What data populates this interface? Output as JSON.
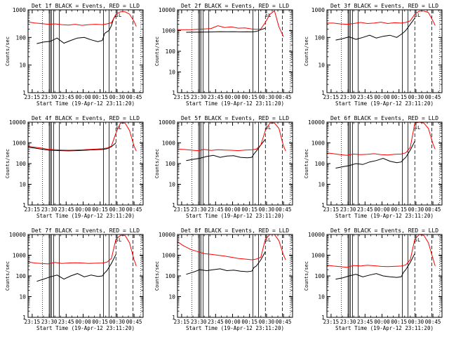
{
  "colors": {
    "events": "#000000",
    "lld": "#ff0000",
    "background": "#ffffff",
    "axes": "#000000"
  },
  "chart_data": [
    {
      "type": "line",
      "title": "Det 1f BLACK = Events, RED = LLD",
      "xlabel": "Start Time (19-Apr-12 23:11:20)",
      "ylabel": "Counts/sec",
      "x_ticks": [
        "23:15",
        "23:30",
        "23:45",
        "00:00",
        "00:15",
        "00:30",
        "00:45"
      ],
      "x_range": [
        "23:11:20",
        "00:53"
      ],
      "y_scale": "log",
      "y_ticks": [
        "1",
        "10",
        "100",
        "1000"
      ],
      "ylim": [
        1,
        1000
      ],
      "grid": false,
      "series": [
        {
          "color": "#000000",
          "x": [
            "23:19",
            "23:25",
            "23:31",
            "23:37",
            "23:43",
            "23:49",
            "23:55",
            "00:01",
            "00:07",
            "00:13",
            "00:17",
            "00:19",
            "00:21",
            "00:23",
            "00:25",
            "00:27",
            "00:29"
          ],
          "y": [
            60,
            68,
            72,
            95,
            62,
            78,
            95,
            100,
            82,
            70,
            78,
            140,
            160,
            180,
            270,
            500,
            600
          ]
        },
        {
          "color": "#ff0000",
          "x": [
            "23:11",
            "23:17",
            "23:23",
            "23:29",
            "23:35",
            "23:41",
            "23:47",
            "23:53",
            "23:59",
            "00:05",
            "00:11",
            "00:17",
            "00:21",
            "00:25",
            "00:29",
            "00:33",
            "00:37",
            "00:41",
            "00:45",
            "00:47"
          ],
          "y": [
            370,
            335,
            320,
            300,
            310,
            290,
            280,
            300,
            275,
            290,
            300,
            290,
            310,
            340,
            700,
            850,
            850,
            700,
            380,
            250
          ]
        }
      ],
      "annotations": [
        "sL"
      ]
    },
    {
      "type": "line",
      "title": "Det 2f BLACK = Events, RED = LLD",
      "xlabel": "Start Time (19-Apr-12 23:11:20)",
      "ylabel": "Counts/sec",
      "x_ticks": [
        "23:15",
        "23:30",
        "23:45",
        "00:00",
        "00:15",
        "00:30",
        "00:45"
      ],
      "x_range": [
        "23:11:20",
        "00:53"
      ],
      "y_scale": "log",
      "y_ticks": [
        "1",
        "10",
        "100",
        "1000",
        "10000"
      ],
      "ylim": [
        1,
        10000
      ],
      "grid": false,
      "series": [
        {
          "color": "#000000",
          "x": [
            "23:19",
            "23:25",
            "23:31",
            "23:37",
            "23:43",
            "23:49",
            "23:55",
            "00:01",
            "00:07",
            "00:13",
            "00:17",
            "00:19",
            "00:21",
            "00:25",
            "00:29"
          ],
          "y": [
            820,
            830,
            840,
            850,
            860,
            880,
            870,
            880,
            860,
            870,
            860,
            880,
            900,
            1100,
            1300
          ]
        },
        {
          "color": "#ff0000",
          "x": [
            "23:11",
            "23:17",
            "23:23",
            "23:29",
            "23:35",
            "23:41",
            "23:47",
            "23:53",
            "23:59",
            "00:05",
            "00:11",
            "00:17",
            "00:21",
            "00:25",
            "00:29",
            "00:33",
            "00:37",
            "00:41",
            "00:45"
          ],
          "y": [
            1100,
            1100,
            1100,
            1150,
            1200,
            1250,
            1700,
            1400,
            1500,
            1300,
            1350,
            1200,
            1150,
            1200,
            2500,
            6000,
            9000,
            1500,
            500
          ]
        }
      ],
      "annotations": [
        "sL"
      ]
    },
    {
      "type": "line",
      "title": "Det 3f BLACK = Events, RED = LLD",
      "xlabel": "Start Time (19-Apr-12 23:11:20)",
      "ylabel": "Counts/sec",
      "x_ticks": [
        "23:15",
        "23:30",
        "23:45",
        "00:00",
        "00:15",
        "00:30",
        "00:45"
      ],
      "x_range": [
        "23:11:20",
        "00:53"
      ],
      "y_scale": "log",
      "y_ticks": [
        "1",
        "10",
        "100",
        "1000"
      ],
      "ylim": [
        1,
        1000
      ],
      "grid": false,
      "series": [
        {
          "color": "#000000",
          "x": [
            "23:19",
            "23:25",
            "23:31",
            "23:37",
            "23:43",
            "23:49",
            "23:55",
            "00:01",
            "00:07",
            "00:13",
            "00:17",
            "00:19",
            "00:21",
            "00:25",
            "00:29"
          ],
          "y": [
            80,
            90,
            105,
            85,
            100,
            120,
            95,
            110,
            120,
            100,
            130,
            150,
            180,
            300,
            500
          ]
        },
        {
          "color": "#ff0000",
          "x": [
            "23:11",
            "23:17",
            "23:23",
            "23:29",
            "23:35",
            "23:41",
            "23:47",
            "23:53",
            "23:59",
            "00:05",
            "00:11",
            "00:17",
            "00:21",
            "00:25",
            "00:29",
            "00:33",
            "00:37",
            "00:41",
            "00:45",
            "00:47"
          ],
          "y": [
            330,
            330,
            310,
            300,
            320,
            350,
            320,
            330,
            360,
            320,
            340,
            330,
            350,
            400,
            700,
            900,
            900,
            800,
            400,
            270
          ]
        }
      ],
      "annotations": [
        "sL"
      ]
    },
    {
      "type": "line",
      "title": "Det 4f BLACK = Events, RED = LLD",
      "xlabel": "Start Time (19-Apr-12 23:11:20)",
      "ylabel": "Counts/sec",
      "x_ticks": [
        "23:15",
        "23:30",
        "23:45",
        "00:00",
        "00:15",
        "00:30",
        "00:45"
      ],
      "x_range": [
        "23:11:20",
        "00:53"
      ],
      "y_scale": "log",
      "y_ticks": [
        "1",
        "10",
        "100",
        "1000",
        "10000"
      ],
      "ylim": [
        1,
        10000
      ],
      "grid": false,
      "series": [
        {
          "color": "#000000",
          "x": [
            "23:11",
            "23:17",
            "23:23",
            "23:29",
            "23:35",
            "23:41",
            "23:47",
            "23:53",
            "23:59",
            "00:05",
            "00:11",
            "00:17",
            "00:21",
            "00:25",
            "00:29"
          ],
          "y": [
            620,
            560,
            500,
            450,
            430,
            420,
            410,
            420,
            430,
            450,
            470,
            480,
            520,
            650,
            1000
          ]
        },
        {
          "color": "#ff0000",
          "x": [
            "23:11",
            "23:17",
            "23:23",
            "23:29",
            "23:35",
            "23:41",
            "23:47",
            "23:53",
            "23:59",
            "00:05",
            "00:11",
            "00:17",
            "00:21",
            "00:25",
            "00:29",
            "00:33",
            "00:37",
            "00:41",
            "00:45",
            "00:47"
          ],
          "y": [
            680,
            620,
            560,
            490,
            470,
            450,
            440,
            450,
            460,
            480,
            500,
            520,
            560,
            700,
            3000,
            9000,
            9000,
            4000,
            700,
            400
          ]
        }
      ],
      "annotations": [
        "sL"
      ]
    },
    {
      "type": "line",
      "title": "Det 5f BLACK = Events, RED = LLD",
      "xlabel": "Start Time (19-Apr-12 23:11:20)",
      "ylabel": "Counts/sec",
      "x_ticks": [
        "23:15",
        "23:30",
        "23:45",
        "00:00",
        "00:15",
        "00:30",
        "00:45"
      ],
      "x_range": [
        "23:11:20",
        "00:53"
      ],
      "y_scale": "log",
      "y_ticks": [
        "1",
        "10",
        "100",
        "1000",
        "10000"
      ],
      "ylim": [
        1,
        10000
      ],
      "grid": false,
      "series": [
        {
          "color": "#000000",
          "x": [
            "23:19",
            "23:25",
            "23:31",
            "23:37",
            "23:43",
            "23:49",
            "23:55",
            "00:01",
            "00:07",
            "00:13",
            "00:17",
            "00:19",
            "00:21",
            "00:25",
            "00:29"
          ],
          "y": [
            140,
            160,
            180,
            220,
            250,
            200,
            230,
            240,
            200,
            190,
            200,
            300,
            400,
            800,
            1500
          ]
        },
        {
          "color": "#ff0000",
          "x": [
            "23:11",
            "23:17",
            "23:23",
            "23:29",
            "23:35",
            "23:41",
            "23:47",
            "23:53",
            "23:59",
            "00:05",
            "00:11",
            "00:17",
            "00:21",
            "00:25",
            "00:29",
            "00:33",
            "00:37",
            "00:41",
            "00:45",
            "00:47"
          ],
          "y": [
            500,
            480,
            450,
            420,
            480,
            430,
            470,
            450,
            440,
            420,
            450,
            460,
            500,
            800,
            4000,
            9000,
            9000,
            5000,
            700,
            400
          ]
        }
      ],
      "annotations": [
        "sL"
      ]
    },
    {
      "type": "line",
      "title": "Det 6f BLACK = Events, RED = LLD",
      "xlabel": "Start Time (19-Apr-12 23:11:20)",
      "ylabel": "Counts/sec",
      "x_ticks": [
        "23:15",
        "23:30",
        "23:45",
        "00:00",
        "00:15",
        "00:30",
        "00:45"
      ],
      "x_range": [
        "23:11:20",
        "00:53"
      ],
      "y_scale": "log",
      "y_ticks": [
        "1",
        "10",
        "100",
        "1000",
        "10000"
      ],
      "ylim": [
        1,
        10000
      ],
      "grid": false,
      "series": [
        {
          "color": "#000000",
          "x": [
            "23:19",
            "23:25",
            "23:31",
            "23:37",
            "23:43",
            "23:49",
            "23:55",
            "00:01",
            "00:07",
            "00:13",
            "00:17",
            "00:19",
            "00:21",
            "00:25",
            "00:29"
          ],
          "y": [
            60,
            70,
            80,
            100,
            90,
            120,
            140,
            180,
            130,
            110,
            120,
            160,
            200,
            450,
            1200
          ]
        },
        {
          "color": "#ff0000",
          "x": [
            "23:11",
            "23:17",
            "23:23",
            "23:29",
            "23:35",
            "23:41",
            "23:47",
            "23:53",
            "23:59",
            "00:05",
            "00:11",
            "00:17",
            "00:21",
            "00:25",
            "00:29",
            "00:33",
            "00:37",
            "00:41",
            "00:45",
            "00:47"
          ],
          "y": [
            330,
            300,
            270,
            250,
            290,
            270,
            280,
            300,
            270,
            260,
            280,
            290,
            330,
            600,
            9000,
            10000,
            9000,
            5000,
            900,
            500
          ]
        }
      ],
      "annotations": [
        "sL"
      ]
    },
    {
      "type": "line",
      "title": "Det 7f BLACK = Events, RED = LLD",
      "xlabel": "Start Time (19-Apr-12 23:11:20)",
      "ylabel": "Counts/sec",
      "x_ticks": [
        "23:15",
        "23:30",
        "23:45",
        "00:00",
        "00:15",
        "00:30",
        "00:45"
      ],
      "x_range": [
        "23:11:20",
        "00:53"
      ],
      "y_scale": "log",
      "y_ticks": [
        "1",
        "10",
        "100",
        "1000",
        "10000"
      ],
      "ylim": [
        1,
        10000
      ],
      "grid": false,
      "series": [
        {
          "color": "#000000",
          "x": [
            "23:19",
            "23:25",
            "23:31",
            "23:37",
            "23:43",
            "23:49",
            "23:55",
            "00:01",
            "00:07",
            "00:13",
            "00:17",
            "00:19",
            "00:21",
            "00:25",
            "00:29"
          ],
          "y": [
            55,
            70,
            90,
            110,
            70,
            100,
            130,
            90,
            110,
            95,
            100,
            140,
            180,
            400,
            1100
          ]
        },
        {
          "color": "#ff0000",
          "x": [
            "23:11",
            "23:17",
            "23:23",
            "23:29",
            "23:35",
            "23:41",
            "23:47",
            "23:53",
            "23:59",
            "00:05",
            "00:11",
            "00:17",
            "00:21",
            "00:25",
            "00:29",
            "00:33",
            "00:37",
            "00:41",
            "00:45",
            "00:47"
          ],
          "y": [
            480,
            420,
            400,
            380,
            450,
            400,
            420,
            430,
            420,
            400,
            410,
            420,
            460,
            700,
            6000,
            9000,
            9000,
            4000,
            600,
            300
          ]
        }
      ],
      "annotations": [
        "sL"
      ]
    },
    {
      "type": "line",
      "title": "Det 8f BLACK = Events, RED = LLD",
      "xlabel": "Start Time (19-Apr-12 23:11:20)",
      "ylabel": "Counts/sec",
      "x_ticks": [
        "23:15",
        "23:30",
        "23:45",
        "00:00",
        "00:15",
        "00:30",
        "00:45"
      ],
      "x_range": [
        "23:11:20",
        "00:53"
      ],
      "y_scale": "log",
      "y_ticks": [
        "1",
        "10",
        "100",
        "1000",
        "10000"
      ],
      "ylim": [
        1,
        10000
      ],
      "grid": false,
      "series": [
        {
          "color": "#000000",
          "x": [
            "23:19",
            "23:25",
            "23:31",
            "23:37",
            "23:43",
            "23:49",
            "23:55",
            "00:01",
            "00:07",
            "00:13",
            "00:17",
            "00:19",
            "00:21",
            "00:25",
            "00:29"
          ],
          "y": [
            120,
            150,
            200,
            180,
            200,
            220,
            180,
            190,
            170,
            160,
            170,
            260,
            300,
            600,
            1500
          ]
        },
        {
          "color": "#ff0000",
          "x": [
            "23:11",
            "23:17",
            "23:23",
            "23:29",
            "23:35",
            "23:41",
            "23:47",
            "23:53",
            "23:59",
            "00:05",
            "00:11",
            "00:17",
            "00:21",
            "00:25",
            "00:29",
            "00:33",
            "00:37",
            "00:41",
            "00:45",
            "00:47"
          ],
          "y": [
            4500,
            2800,
            1900,
            1500,
            1200,
            1100,
            1000,
            900,
            800,
            700,
            650,
            600,
            650,
            800,
            6000,
            10000,
            10000,
            5000,
            1000,
            600
          ]
        }
      ],
      "annotations": [
        "sL"
      ]
    },
    {
      "type": "line",
      "title": "Det 9f BLACK = Events, RED = LLD",
      "xlabel": "Start Time (19-Apr-12 23:11:20)",
      "ylabel": "Counts/sec",
      "x_ticks": [
        "23:15",
        "23:30",
        "23:45",
        "00:00",
        "00:15",
        "00:30",
        "00:45"
      ],
      "x_range": [
        "23:11:20",
        "00:53"
      ],
      "y_scale": "log",
      "y_ticks": [
        "1",
        "10",
        "100",
        "1000",
        "10000"
      ],
      "ylim": [
        1,
        10000
      ],
      "grid": false,
      "series": [
        {
          "color": "#000000",
          "x": [
            "23:19",
            "23:25",
            "23:31",
            "23:37",
            "23:43",
            "23:49",
            "23:55",
            "00:01",
            "00:07",
            "00:13",
            "00:17",
            "00:19",
            "00:21",
            "00:25",
            "00:29"
          ],
          "y": [
            70,
            80,
            100,
            120,
            90,
            110,
            130,
            100,
            90,
            85,
            90,
            150,
            200,
            450,
            1200
          ]
        },
        {
          "color": "#ff0000",
          "x": [
            "23:11",
            "23:17",
            "23:23",
            "23:29",
            "23:35",
            "23:41",
            "23:47",
            "23:53",
            "23:59",
            "00:05",
            "00:11",
            "00:17",
            "00:21",
            "00:25",
            "00:29",
            "00:33",
            "00:37",
            "00:41",
            "00:45",
            "00:47"
          ],
          "y": [
            330,
            300,
            280,
            260,
            320,
            300,
            330,
            310,
            290,
            280,
            290,
            300,
            340,
            600,
            6000,
            10000,
            9000,
            4000,
            700,
            300
          ]
        }
      ],
      "annotations": [
        "sL"
      ]
    }
  ]
}
